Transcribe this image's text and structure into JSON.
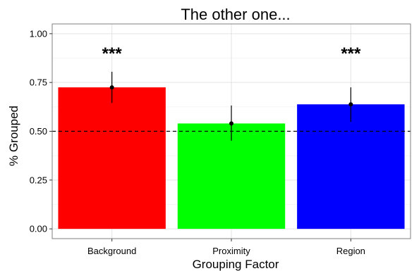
{
  "chart_data": {
    "type": "bar",
    "title": "The other one...",
    "xlabel": "Grouping Factor",
    "ylabel": "% Grouped",
    "categories": [
      "Background",
      "Proximity",
      "Region"
    ],
    "values": [
      0.725,
      0.54,
      0.638
    ],
    "error_low": [
      0.645,
      0.452,
      0.548
    ],
    "error_high": [
      0.805,
      0.632,
      0.725
    ],
    "bar_colors": [
      "#ff0000",
      "#00ff00",
      "#0000ff"
    ],
    "significance": [
      "***",
      "",
      "***"
    ],
    "reference_line": 0.5,
    "ylim": [
      -0.05,
      1.05
    ],
    "yticks": [
      0.0,
      0.25,
      0.5,
      0.75,
      1.0
    ],
    "ytick_labels": [
      "0.00",
      "0.25",
      "0.50",
      "0.75",
      "1.00"
    ],
    "grid": true
  }
}
